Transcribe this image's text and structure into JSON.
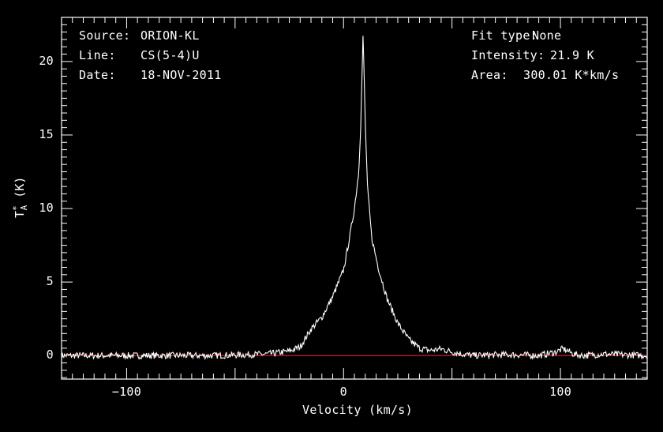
{
  "header": {
    "source_label": "Source:",
    "source_value": "ORION-KL",
    "line_label": "Line:",
    "line_value": "CS(5-4)U",
    "date_label": "Date:",
    "date_value": "18-NOV-2011",
    "fit_label": "Fit type:",
    "fit_value": "None",
    "intensity_label": "Intensity:",
    "intensity_value": "21.9 K",
    "area_label": "Area:",
    "area_value": "300.01 K*km/s"
  },
  "chart_data": {
    "type": "line",
    "title": "",
    "xlabel": "Velocity (km/s)",
    "ylabel_main": "T",
    "ylabel_sup": "*",
    "ylabel_sub": "A",
    "ylabel_unit": "(K)",
    "xlim": [
      -130,
      140
    ],
    "ylim": [
      -1.6,
      23.0
    ],
    "xticks": [
      -100,
      0,
      100
    ],
    "xtick_labels": [
      "−100",
      "0",
      "100"
    ],
    "yticks": [
      0,
      5,
      10,
      15,
      20
    ],
    "ytick_labels": [
      "0",
      "5",
      "10",
      "15",
      "20"
    ],
    "baseline": 0,
    "series": [
      {
        "x": [
          -130,
          -100,
          -60,
          -35,
          -25,
          -20,
          -15,
          -10,
          -5,
          0,
          3,
          5,
          7,
          8,
          9,
          10,
          11,
          13,
          16,
          20,
          25,
          30,
          35,
          40,
          45,
          50,
          55,
          60,
          70,
          80,
          90,
          98,
          101,
          103,
          106,
          110,
          120,
          130,
          140
        ],
        "y": [
          0,
          0,
          0,
          0.1,
          0.3,
          0.6,
          1.8,
          2.6,
          4.0,
          5.8,
          8.2,
          10.0,
          12.5,
          16.0,
          21.9,
          16.0,
          11.5,
          8.0,
          6.0,
          3.9,
          2.2,
          1.1,
          0.5,
          0.35,
          0.45,
          0.25,
          0.1,
          0,
          0.05,
          0.05,
          0,
          0.25,
          0.45,
          0.35,
          0.1,
          0,
          0.1,
          0.05,
          0
        ]
      }
    ]
  }
}
